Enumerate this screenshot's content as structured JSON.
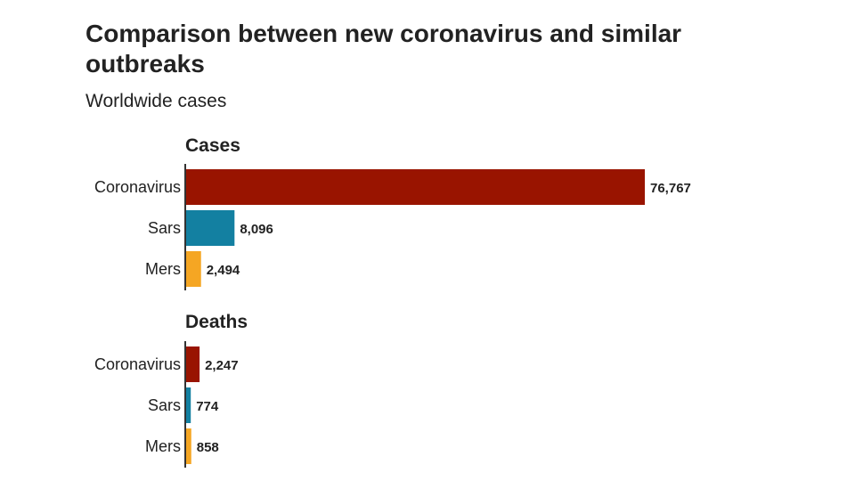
{
  "title": "Comparison between new coronavirus and similar outbreaks",
  "subtitle": "Worldwide cases",
  "colors": {
    "Coronavirus": "#991400",
    "Sars": "#1380a1",
    "Mers": "#f5a623",
    "axis": "#333333",
    "text": "#222222"
  },
  "chart_data": [
    {
      "type": "bar",
      "orientation": "horizontal",
      "title": "Cases",
      "categories": [
        "Coronavirus",
        "Sars",
        "Mers"
      ],
      "values": [
        76767,
        8096,
        2494
      ],
      "value_labels": [
        "76,767",
        "8,096",
        "2,494"
      ],
      "xlim": [
        0,
        76767
      ]
    },
    {
      "type": "bar",
      "orientation": "horizontal",
      "title": "Deaths",
      "categories": [
        "Coronavirus",
        "Sars",
        "Mers"
      ],
      "values": [
        2247,
        774,
        858
      ],
      "value_labels": [
        "2,247",
        "774",
        "858"
      ],
      "xlim": [
        0,
        76767
      ]
    }
  ]
}
